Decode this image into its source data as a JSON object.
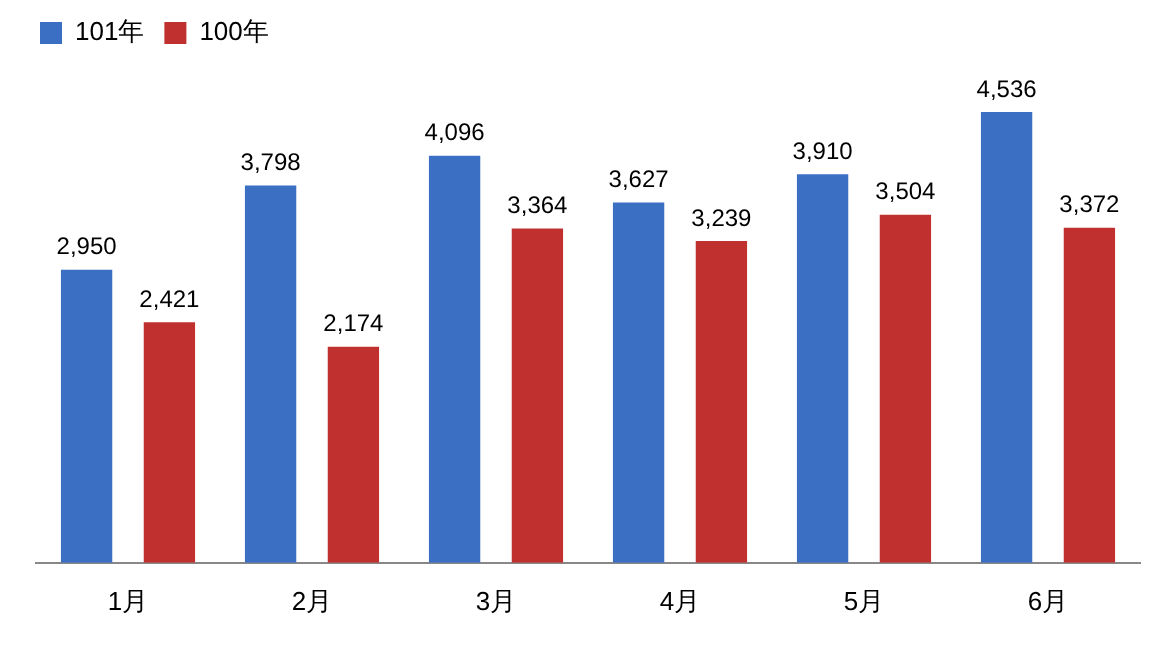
{
  "chart_data": {
    "type": "bar",
    "categories": [
      "1月",
      "2月",
      "3月",
      "4月",
      "5月",
      "6月"
    ],
    "series": [
      {
        "name": "101年",
        "color": "#3a6fc4",
        "values": [
          2950,
          3798,
          4096,
          3627,
          3910,
          4536
        ],
        "value_labels": [
          "2,950",
          "3,798",
          "4,096",
          "3,627",
          "3,910",
          "4,536"
        ]
      },
      {
        "name": "100年",
        "color": "#c0302e",
        "values": [
          2421,
          2174,
          3364,
          3239,
          3504,
          3372
        ],
        "value_labels": [
          "2,421",
          "2,174",
          "3,364",
          "3,239",
          "3,504",
          "3,372"
        ]
      }
    ],
    "tick_labels": "x",
    "grid": false,
    "legend": "top left"
  }
}
